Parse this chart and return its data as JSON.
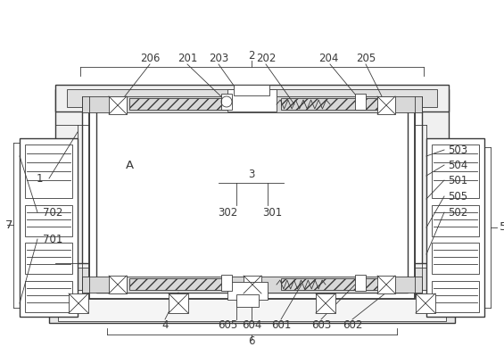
{
  "bg_color": "#ffffff",
  "line_color": "#3a3a3a",
  "lw": 1.0,
  "thin_lw": 0.6,
  "fs": 8.5,
  "fig_w": 5.65,
  "fig_h": 3.89,
  "dpi": 100
}
